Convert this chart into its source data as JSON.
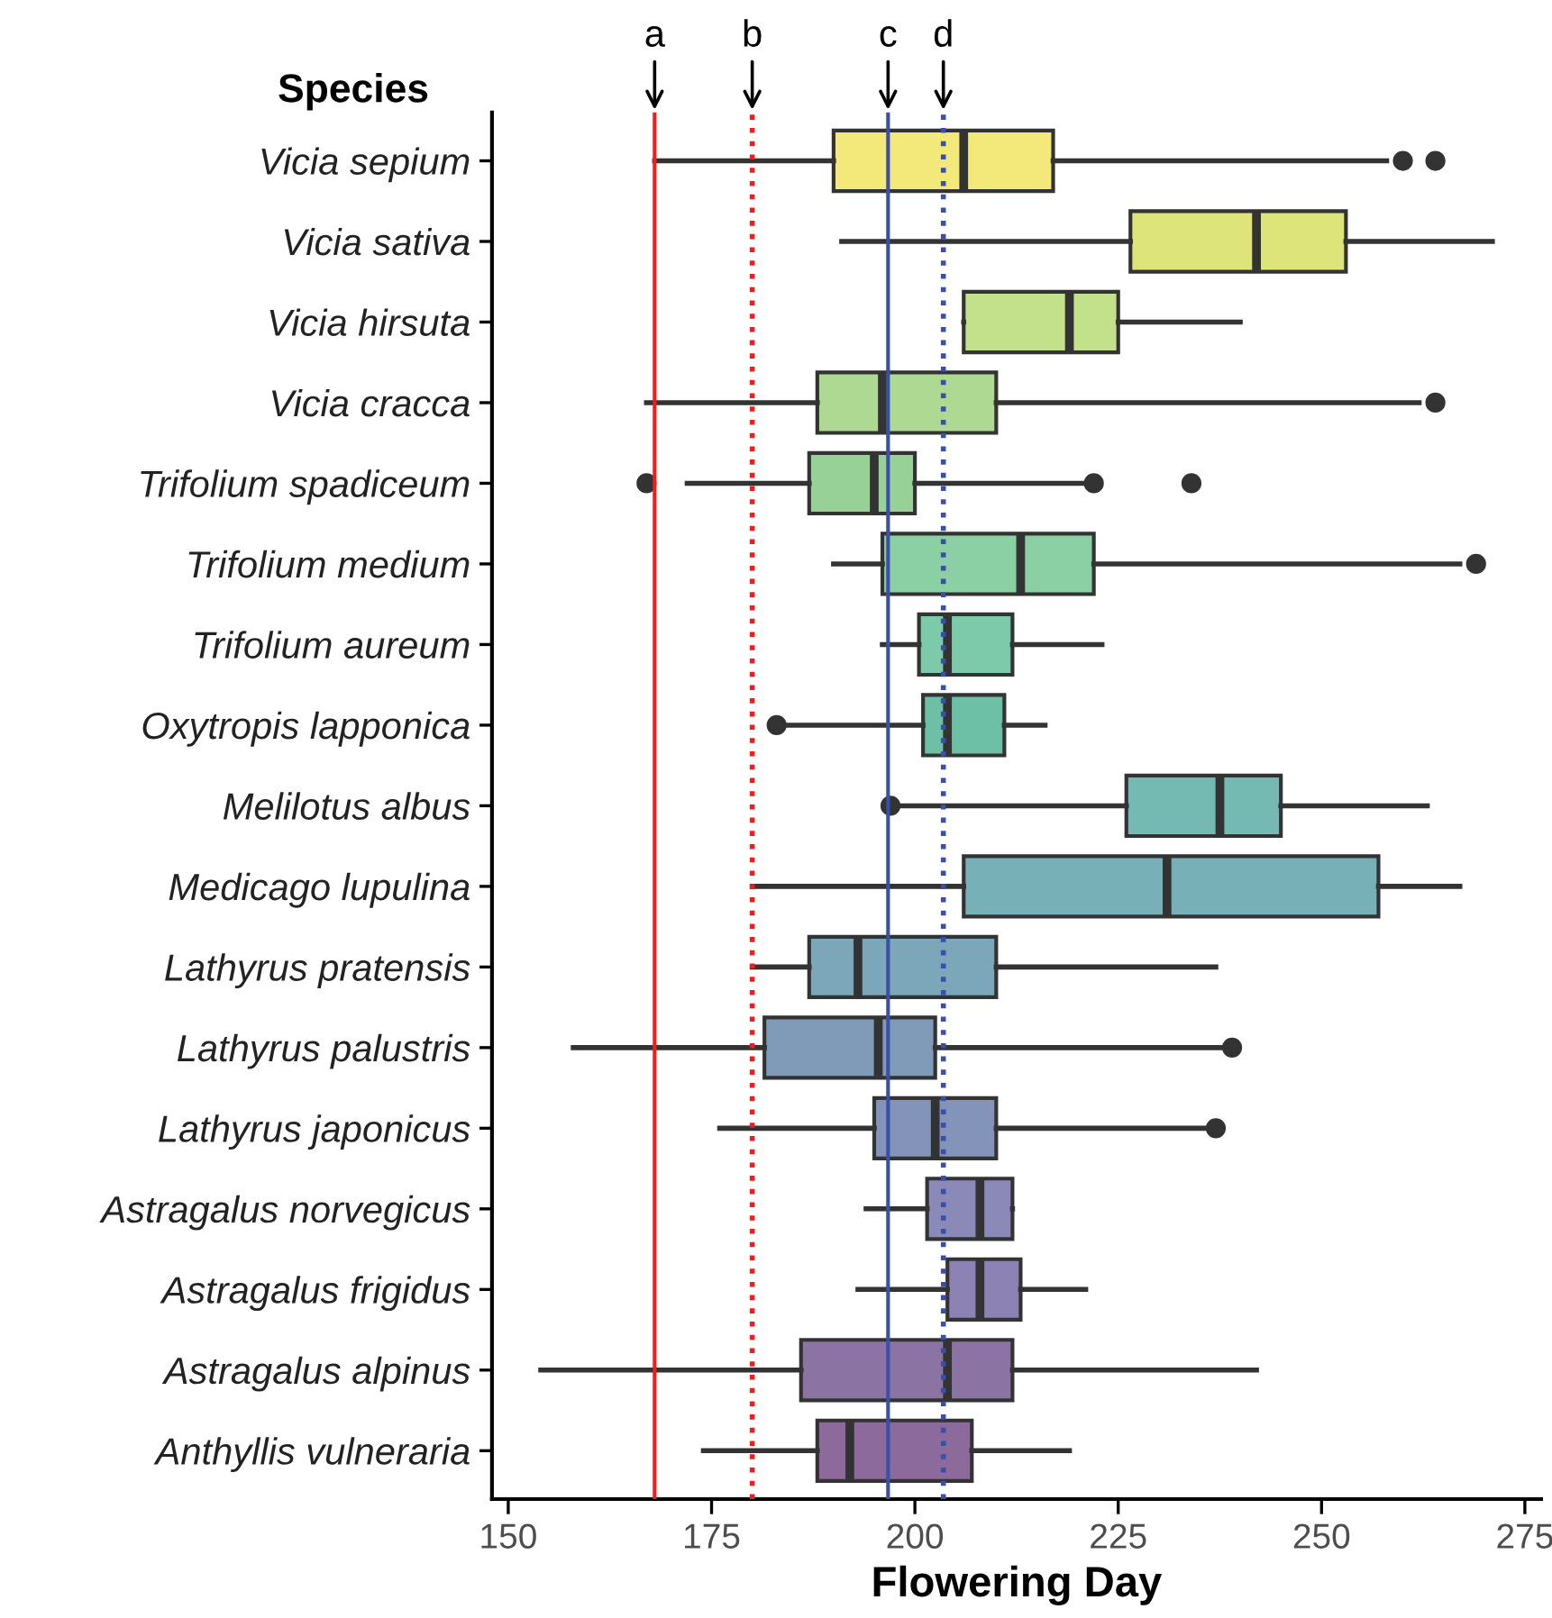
{
  "chart_data": {
    "type": "box",
    "ylabel": "Species",
    "xlabel": "Flowering Day",
    "orientation": "horizontal",
    "categories": [
      "Vicia sepium",
      "Vicia sativa",
      "Vicia hirsuta",
      "Vicia cracca",
      "Trifolium spadiceum",
      "Trifolium medium",
      "Trifolium aureum",
      "Oxytropis lapponica",
      "Melilotus albus",
      "Medicago lupulina",
      "Lathyrus pratensis",
      "Lathyrus palustris",
      "Lathyrus japonicus",
      "Astragalus norvegicus",
      "Astragalus frigidus",
      "Astragalus alpinus",
      "Anthyllis vulneraria"
    ],
    "colors": [
      "#f3e87a",
      "#dde57a",
      "#c3e08a",
      "#aed993",
      "#97d197",
      "#8bcfa4",
      "#7ccaa9",
      "#6dbfa5",
      "#74b9b2",
      "#78b0b8",
      "#7ca6b9",
      "#7f9bb8",
      "#8393b9",
      "#8a89b8",
      "#8d82b4",
      "#8b74a4",
      "#8c6a9c"
    ],
    "boxes": [
      {
        "low": 168,
        "q1": 190,
        "median": 206,
        "q3": 217,
        "high": 258,
        "outliers": [
          260,
          264
        ]
      },
      {
        "low": 191,
        "q1": 226.5,
        "median": 242,
        "q3": 253,
        "high": 271
      },
      {
        "low": 206,
        "q1": 206,
        "median": 219,
        "q3": 225,
        "high": 240
      },
      {
        "low": 167,
        "q1": 188,
        "median": 196,
        "q3": 210,
        "high": 262,
        "outliers": [
          264
        ]
      },
      {
        "low": 172,
        "q1": 187,
        "median": 195,
        "q3": 200,
        "high": 221,
        "outliers": [
          167,
          222,
          234
        ]
      },
      {
        "low": 190,
        "q1": 196,
        "median": 213,
        "q3": 222,
        "high": 267,
        "outliers": [
          269
        ]
      },
      {
        "low": 196,
        "q1": 200.5,
        "median": 204,
        "q3": 212,
        "high": 223
      },
      {
        "low": 184,
        "q1": 201,
        "median": 204,
        "q3": 211,
        "high": 216,
        "outliers": [
          183
        ]
      },
      {
        "low": 197,
        "q1": 226,
        "median": 237.5,
        "q3": 245,
        "high": 263,
        "outliers": [
          197
        ]
      },
      {
        "low": 180,
        "q1": 206,
        "median": 231,
        "q3": 257,
        "high": 267
      },
      {
        "low": 180,
        "q1": 187,
        "median": 193,
        "q3": 210,
        "high": 237
      },
      {
        "low": 158,
        "q1": 181.5,
        "median": 195.5,
        "q3": 202.5,
        "high": 238,
        "outliers": [
          239
        ]
      },
      {
        "low": 176,
        "q1": 195,
        "median": 202.5,
        "q3": 210,
        "high": 236,
        "outliers": [
          237
        ]
      },
      {
        "low": 194,
        "q1": 201.5,
        "median": 208,
        "q3": 212,
        "high": 212
      },
      {
        "low": 193,
        "q1": 204,
        "median": 208,
        "q3": 213,
        "high": 221
      },
      {
        "low": 154,
        "q1": 186,
        "median": 204,
        "q3": 212,
        "high": 242
      },
      {
        "low": 174,
        "q1": 188,
        "median": 192,
        "q3": 207,
        "high": 219
      }
    ],
    "ref_lines": [
      {
        "axis": "x",
        "value": 168,
        "label": "a",
        "color": "#e8201f",
        "line_style": "solid"
      },
      {
        "axis": "x",
        "value": 180,
        "label": "b",
        "color": "#e8201f",
        "line_style": "dotted"
      },
      {
        "axis": "x",
        "value": 196.7,
        "label": "c",
        "color": "#3a4fa8",
        "line_style": "solid"
      },
      {
        "axis": "x",
        "value": 203.5,
        "label": "d",
        "color": "#3a4fa8",
        "line_style": "dotted"
      }
    ],
    "xlim": [
      148,
      277
    ],
    "xticks": [
      150,
      175,
      200,
      225,
      250,
      275
    ],
    "grid": false
  }
}
